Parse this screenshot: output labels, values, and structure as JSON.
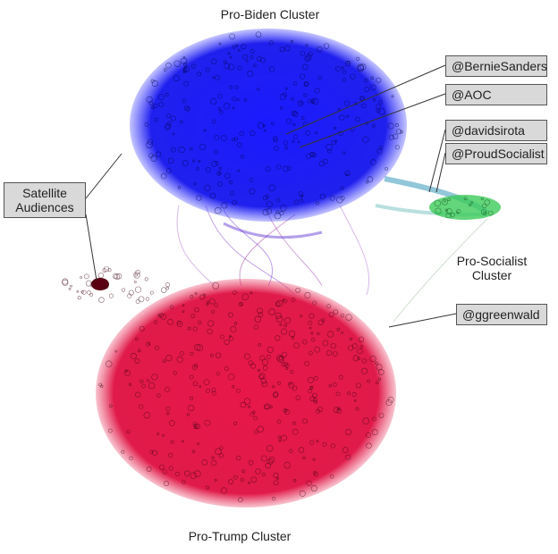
{
  "clusters": {
    "biden": "Pro-Biden Cluster",
    "trump": "Pro-Trump Cluster",
    "socialist": "Pro-Socialist Cluster"
  },
  "callouts": {
    "bernie": "@BernieSanders",
    "aoc": "@AOC",
    "sirota": "@davidsirota",
    "proud": "@ProudSocialist",
    "greenwald": "@ggreenwald",
    "satellite": "Satellite Audiences"
  }
}
